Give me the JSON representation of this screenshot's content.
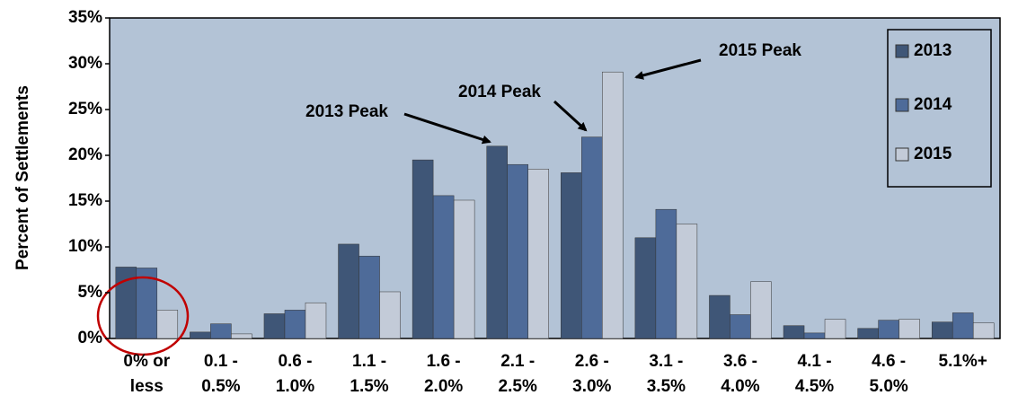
{
  "chart_data": {
    "type": "bar",
    "y_label": "Percent of Settlements",
    "categories": [
      "0% or less",
      "0.1 - 0.5%",
      "0.6 - 1.0%",
      "1.1 - 1.5%",
      "1.6 - 2.0%",
      "2.1 - 2.5%",
      "2.6 - 3.0%",
      "3.1 - 3.5%",
      "3.6 - 4.0%",
      "4.1 - 4.5%",
      "4.6 - 5.0%",
      "5.1%+"
    ],
    "series": [
      {
        "name": "2013",
        "color": "#3f5677",
        "values": [
          7.8,
          0.7,
          2.7,
          10.3,
          19.5,
          21.0,
          18.1,
          11.0,
          4.7,
          1.4,
          1.1,
          1.8
        ]
      },
      {
        "name": "2014",
        "color": "#4e6b99",
        "values": [
          7.7,
          1.6,
          3.1,
          9.0,
          15.6,
          19.0,
          22.0,
          14.1,
          2.6,
          0.6,
          2.0,
          2.8
        ]
      },
      {
        "name": "2015",
        "color": "#c3cbd8",
        "values": [
          3.1,
          0.5,
          3.9,
          5.1,
          15.1,
          18.5,
          29.1,
          12.5,
          6.2,
          2.1,
          2.1,
          1.7
        ]
      }
    ],
    "ylim": [
      0,
      35
    ],
    "yticks": [
      {
        "value": 0,
        "label": "0%"
      },
      {
        "value": 5,
        "label": "5%"
      },
      {
        "value": 10,
        "label": "10%"
      },
      {
        "value": 15,
        "label": "15%"
      },
      {
        "value": 20,
        "label": "20%"
      },
      {
        "value": 25,
        "label": "25%"
      },
      {
        "value": 30,
        "label": "30%"
      },
      {
        "value": 35,
        "label": "35%"
      }
    ],
    "grid": false,
    "legend": "top-right",
    "annotations": [
      "2013 Peak",
      "2014 Peak",
      "2015 Peak"
    ]
  }
}
